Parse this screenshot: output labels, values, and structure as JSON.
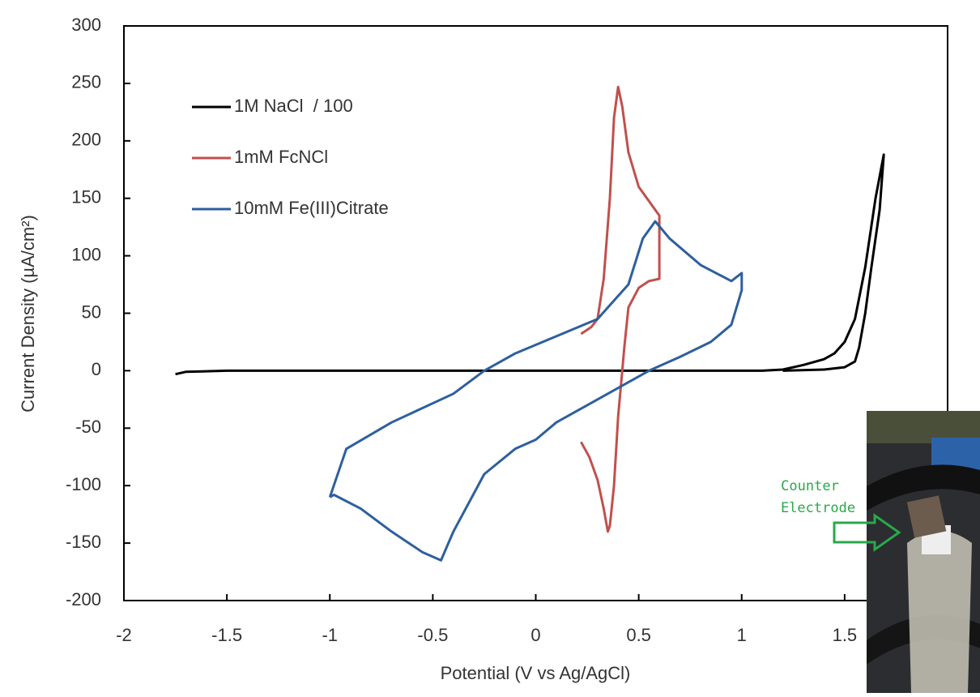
{
  "chart_data": {
    "type": "line",
    "x_label": "Potential (V vs Ag/AgCl)",
    "y_label": "Current Density (µA/cm²)",
    "xlim": [
      -2,
      2
    ],
    "xticks": [
      -2,
      -1.5,
      -1,
      -0.5,
      0,
      0.5,
      1,
      1.5
    ],
    "ylim": [
      -200,
      300
    ],
    "yticks": [
      -200,
      -150,
      -100,
      -50,
      0,
      50,
      100,
      150,
      200,
      250,
      300
    ],
    "legend": "upper left",
    "series": [
      {
        "name": "1M NaCl  / 100",
        "color": "#000000",
        "x": [
          -1.75,
          -1.7,
          -1.5,
          -1,
          -0.5,
          0,
          0.5,
          1,
          1.1,
          1.2,
          1.3,
          1.4,
          1.45,
          1.5,
          1.55,
          1.6,
          1.65,
          1.69,
          1.67,
          1.63,
          1.6,
          1.57,
          1.55,
          1.5,
          1.4,
          1.2
        ],
        "values": [
          -3,
          -1,
          0,
          0,
          0,
          0,
          0,
          0,
          0,
          1,
          5,
          10,
          15,
          25,
          45,
          90,
          150,
          188,
          140,
          90,
          50,
          20,
          8,
          3,
          1,
          0
        ]
      },
      {
        "name": "1mM FcNCl",
        "color": "#c0504d",
        "x": [
          0.22,
          0.27,
          0.3,
          0.33,
          0.36,
          0.38,
          0.4,
          0.42,
          0.45,
          0.5,
          0.6,
          0.6,
          0.55,
          0.5,
          0.45,
          0.43,
          0.42,
          0.4,
          0.38,
          0.36,
          0.35,
          0.33,
          0.3,
          0.26,
          0.22
        ],
        "values": [
          32,
          38,
          45,
          80,
          150,
          220,
          247,
          230,
          190,
          160,
          135,
          80,
          78,
          72,
          55,
          20,
          0,
          -40,
          -100,
          -135,
          -140,
          -120,
          -95,
          -75,
          -62
        ]
      },
      {
        "name": "10mM Fe(III)Citrate",
        "color": "#2e5f9e",
        "x": [
          -1,
          -0.92,
          -0.7,
          -0.4,
          -0.25,
          -0.1,
          0.1,
          0.3,
          0.45,
          0.52,
          0.58,
          0.65,
          0.8,
          0.95,
          1,
          1,
          0.95,
          0.85,
          0.7,
          0.55,
          0.4,
          0.25,
          0.1,
          0,
          -0.1,
          -0.25,
          -0.4,
          -0.46,
          -0.55,
          -0.7,
          -0.85,
          -0.98,
          -1
        ],
        "values": [
          -110,
          -68,
          -45,
          -20,
          0,
          15,
          30,
          45,
          75,
          115,
          130,
          115,
          92,
          78,
          85,
          70,
          40,
          25,
          12,
          0,
          -15,
          -30,
          -45,
          -60,
          -68,
          -90,
          -140,
          -165,
          -158,
          -140,
          -120,
          -108,
          -110
        ]
      }
    ],
    "annotations": [
      "Counter",
      "Electrode"
    ]
  }
}
